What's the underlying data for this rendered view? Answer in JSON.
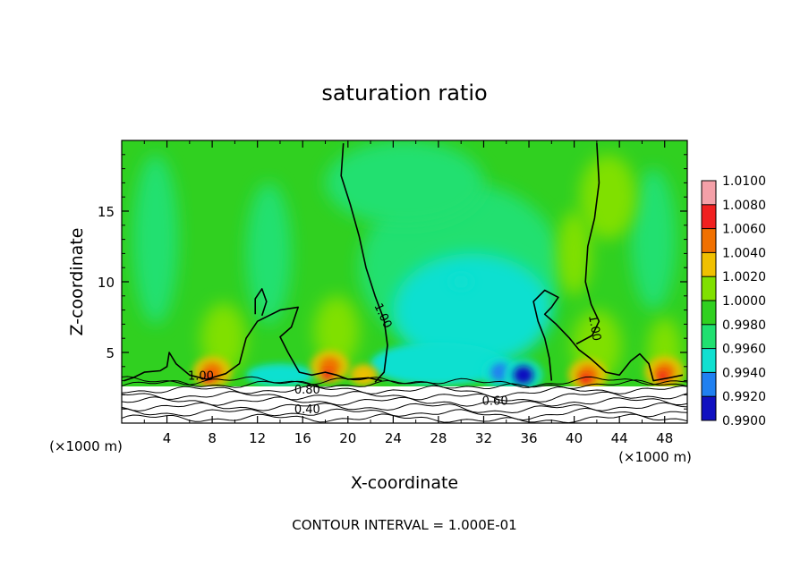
{
  "chart_data": {
    "type": "heatmap",
    "title": "saturation ratio",
    "xlabel": "X-coordinate",
    "ylabel": "Z-coordinate",
    "x_units": "(×1000 m)",
    "x_units_right": "(×1000 m)",
    "xlim": [
      0,
      50
    ],
    "ylim": [
      0,
      20
    ],
    "x_ticks": [
      "4",
      "8",
      "12",
      "16",
      "20",
      "24",
      "28",
      "32",
      "36",
      "40",
      "44",
      "48"
    ],
    "y_ticks": [
      "5",
      "10",
      "15"
    ],
    "footer": "CONTOUR INTERVAL = 1.000E-01",
    "colorbar": {
      "levels": [
        "1.0100",
        "1.0080",
        "1.0060",
        "1.0040",
        "1.0020",
        "1.0000",
        "0.9980",
        "0.9960",
        "0.9940",
        "0.9920",
        "0.9900"
      ],
      "colors": [
        "#f4a0a8",
        "#f02020",
        "#f07000",
        "#f0c000",
        "#80e000",
        "#30d020",
        "#20e070",
        "#10e0d0",
        "#2080f0",
        "#1010c0",
        "#6010a0"
      ]
    },
    "contour_labels": [
      {
        "text": "1.00",
        "x": 7.0,
        "z": 3.4
      },
      {
        "text": "1.00",
        "x": 22.8,
        "z": 7.8
      },
      {
        "text": "1.00",
        "x": 41.5,
        "z": 7.0
      },
      {
        "text": "0.80",
        "x": 16.4,
        "z": 2.4
      },
      {
        "text": "0.40",
        "x": 16.4,
        "z": 1.0
      },
      {
        "text": "0.60",
        "x": 33.0,
        "z": 1.6
      }
    ],
    "field_features": [
      {
        "x": 8.0,
        "z": 3.6,
        "value": 1.006
      },
      {
        "x": 18.4,
        "z": 4.0,
        "value": 1.006
      },
      {
        "x": 21.4,
        "z": 3.4,
        "value": 1.004
      },
      {
        "x": 33.5,
        "z": 3.6,
        "value": 0.993
      },
      {
        "x": 35.5,
        "z": 3.4,
        "value": 0.992
      },
      {
        "x": 41.2,
        "z": 3.4,
        "value": 1.006
      },
      {
        "x": 48.0,
        "z": 3.6,
        "value": 1.006
      },
      {
        "x": 30.0,
        "z": 10.0,
        "value": 0.997
      }
    ]
  }
}
